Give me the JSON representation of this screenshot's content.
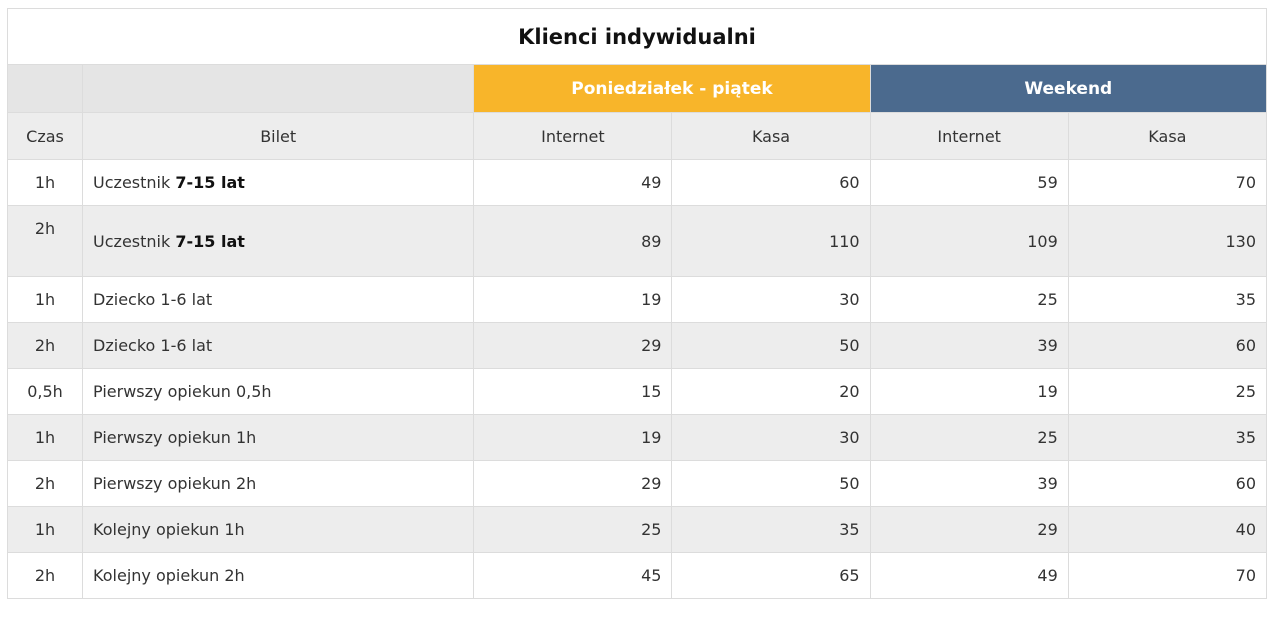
{
  "title": "Klienci indywidualni",
  "groups": {
    "weekday": "Poniedziałek - piątek",
    "weekend": "Weekend"
  },
  "columns": {
    "czas": "Czas",
    "bilet": "Bilet",
    "weekday_internet": "Internet",
    "weekday_kasa": "Kasa",
    "weekend_internet": "Internet",
    "weekend_kasa": "Kasa"
  },
  "colors": {
    "weekday_header": "#f8b52a",
    "weekend_header": "#4b6a8e",
    "row_alt": "#ededed"
  },
  "rows": [
    {
      "czas": "1h",
      "bilet": "Uczestnik ",
      "bilet_bold": "7-15 lat",
      "wd_internet": "49",
      "wd_kasa": "60",
      "we_internet": "59",
      "we_kasa": "70"
    },
    {
      "czas": "2h",
      "bilet": "Uczestnik ",
      "bilet_bold": "7-15 lat",
      "wd_internet": "89",
      "wd_kasa": "110",
      "we_internet": "109",
      "we_kasa": "130"
    },
    {
      "czas": "1h",
      "bilet": "Dziecko 1-6 lat",
      "bilet_bold": "",
      "wd_internet": "19",
      "wd_kasa": "30",
      "we_internet": "25",
      "we_kasa": "35"
    },
    {
      "czas": "2h",
      "bilet": "Dziecko 1-6 lat",
      "bilet_bold": "",
      "wd_internet": "29",
      "wd_kasa": "50",
      "we_internet": "39",
      "we_kasa": "60"
    },
    {
      "czas": "0,5h",
      "bilet": "Pierwszy opiekun 0,5h",
      "bilet_bold": "",
      "wd_internet": "15",
      "wd_kasa": "20",
      "we_internet": "19",
      "we_kasa": "25"
    },
    {
      "czas": "1h",
      "bilet": "Pierwszy opiekun 1h",
      "bilet_bold": "",
      "wd_internet": "19",
      "wd_kasa": "30",
      "we_internet": "25",
      "we_kasa": "35"
    },
    {
      "czas": "2h",
      "bilet": "Pierwszy opiekun 2h",
      "bilet_bold": "",
      "wd_internet": "29",
      "wd_kasa": "50",
      "we_internet": "39",
      "we_kasa": "60"
    },
    {
      "czas": "1h",
      "bilet": "Kolejny opiekun 1h",
      "bilet_bold": "",
      "wd_internet": "25",
      "wd_kasa": "35",
      "we_internet": "29",
      "we_kasa": "40"
    },
    {
      "czas": "2h",
      "bilet": "Kolejny opiekun 2h",
      "bilet_bold": "",
      "wd_internet": "45",
      "wd_kasa": "65",
      "we_internet": "49",
      "we_kasa": "70"
    }
  ]
}
